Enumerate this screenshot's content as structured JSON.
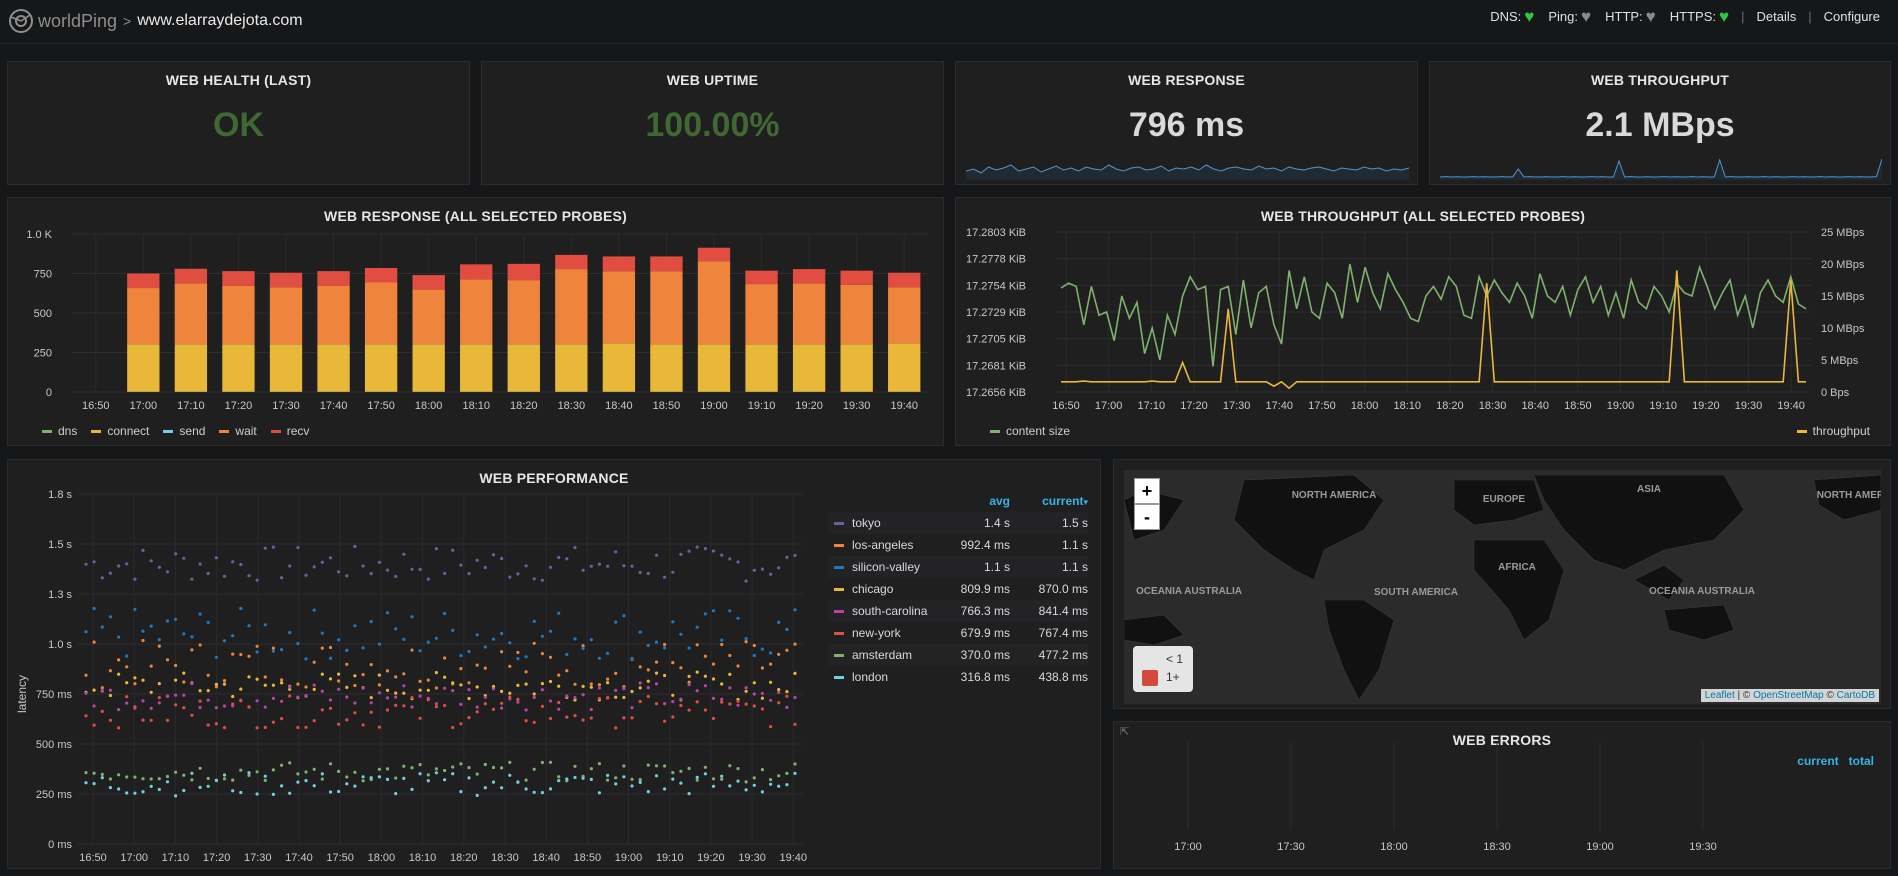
{
  "header": {
    "brand": "worldPing",
    "separator": ">",
    "site": "www.elarraydejota.com",
    "checks": [
      {
        "label": "DNS:",
        "state": "ok",
        "color": "#2ec642",
        "icon": "heart-icon"
      },
      {
        "label": "Ping:",
        "state": "unknown",
        "color": "#8a8a8a",
        "icon": "heart-icon"
      },
      {
        "label": "HTTP:",
        "state": "unknown",
        "color": "#8a8a8a",
        "icon": "heart-icon"
      },
      {
        "label": "HTTPS:",
        "state": "ok",
        "color": "#2ec642",
        "icon": "heart-icon"
      }
    ],
    "details_link": "Details",
    "configure_link": "Configure",
    "divider": "|"
  },
  "stats": [
    {
      "title": "WEB HEALTH (LAST)",
      "value": "OK",
      "color": "#3f6833"
    },
    {
      "title": "WEB UPTIME",
      "value": "100.00%",
      "color": "#3f6833"
    },
    {
      "title": "WEB RESPONSE",
      "value": "796 ms",
      "color": "#d8d9da",
      "spark": [
        0.4,
        0.5,
        0.3,
        0.6,
        0.45,
        0.55,
        0.7,
        0.4,
        0.5,
        0.6,
        0.35,
        0.5,
        0.65,
        0.45,
        0.55,
        0.4,
        0.6,
        0.5,
        0.45,
        0.7,
        0.5,
        0.4,
        0.55,
        0.6,
        0.45,
        0.5,
        0.65,
        0.4,
        0.55,
        0.5,
        0.6,
        0.45,
        0.7,
        0.5,
        0.4,
        0.55,
        0.6,
        0.5,
        0.45,
        0.65,
        0.5,
        0.55,
        0.4,
        0.6,
        0.5,
        0.45,
        0.55,
        0.6,
        0.5,
        0.4,
        0.55,
        0.5,
        0.45,
        0.6,
        0.5,
        0.55,
        0.4,
        0.5,
        0.45,
        0.55
      ]
    },
    {
      "title": "WEB THROUGHPUT",
      "value": "2.1 MBps",
      "color": "#d8d9da",
      "spark": [
        0.1,
        0.12,
        0.1,
        0.11,
        0.1,
        0.1,
        0.12,
        0.1,
        0.11,
        0.1,
        0.1,
        0.12,
        0.1,
        0.11,
        0.5,
        0.1,
        0.12,
        0.1,
        0.1,
        0.11,
        0.1,
        0.1,
        0.12,
        0.1,
        0.11,
        0.1,
        0.1,
        0.12,
        0.1,
        0.11,
        0.1,
        0.1,
        0.9,
        0.1,
        0.12,
        0.1,
        0.1,
        0.11,
        0.1,
        0.1,
        0.12,
        0.1,
        0.11,
        0.1,
        0.1,
        0.12,
        0.1,
        0.11,
        0.1,
        0.1,
        0.95,
        0.1,
        0.12,
        0.1,
        0.1,
        0.11,
        0.1,
        0.1,
        0.12,
        0.1,
        0.11,
        0.1,
        0.1,
        0.12,
        0.1,
        0.11,
        0.1,
        0.1,
        0.12,
        0.1,
        0.11,
        0.1,
        0.1,
        0.12,
        0.1,
        0.11,
        0.1,
        0.1,
        0.12,
        1.0
      ]
    }
  ],
  "response_panel": {
    "title": "WEB RESPONSE (ALL SELECTED PROBES)",
    "legend": [
      {
        "name": "dns",
        "color": "#7eb26d"
      },
      {
        "name": "connect",
        "color": "#eab839"
      },
      {
        "name": "send",
        "color": "#6ed0e0"
      },
      {
        "name": "wait",
        "color": "#ef843c"
      },
      {
        "name": "recv",
        "color": "#e24d42"
      }
    ]
  },
  "throughput_panel": {
    "title": "WEB THROUGHPUT (ALL SELECTED PROBES)",
    "legend_left": {
      "name": "content size",
      "color": "#7eb26d"
    },
    "legend_right": {
      "name": "throughput",
      "color": "#eab839"
    }
  },
  "performance_panel": {
    "title": "WEB PERFORMANCE",
    "ylabel": "latency",
    "col_avg": "avg",
    "col_current": "current",
    "sort_icon": "caret-down-icon",
    "probes": [
      {
        "name": "tokyo",
        "avg": "1.4 s",
        "current": "1.5 s",
        "color": "#705da0"
      },
      {
        "name": "los-angeles",
        "avg": "992.4 ms",
        "current": "1.1 s",
        "color": "#ef843c"
      },
      {
        "name": "silicon-valley",
        "avg": "1.1 s",
        "current": "1.1 s",
        "color": "#1f78c1"
      },
      {
        "name": "chicago",
        "avg": "809.9 ms",
        "current": "870.0 ms",
        "color": "#eab839"
      },
      {
        "name": "south-carolina",
        "avg": "766.3 ms",
        "current": "841.4 ms",
        "color": "#ba43a9"
      },
      {
        "name": "new-york",
        "avg": "679.9 ms",
        "current": "767.4 ms",
        "color": "#e24d42"
      },
      {
        "name": "amsterdam",
        "avg": "370.0 ms",
        "current": "477.2 ms",
        "color": "#7eb26d"
      },
      {
        "name": "london",
        "avg": "316.8 ms",
        "current": "438.8 ms",
        "color": "#6ed0e0"
      }
    ]
  },
  "map_panel": {
    "zoom_in": "+",
    "zoom_out": "-",
    "legend_lt1": "< 1",
    "legend_1plus": "1+",
    "legend_color": "#d44a3a",
    "attrib_leaflet": "Leaflet",
    "attrib_sep1": " | © ",
    "attrib_osm": "OpenStreetMap",
    "attrib_sep2": " © ",
    "attrib_carto": "CartoDB",
    "labels": [
      "NORTH AMERICA",
      "EUROPE",
      "ASIA",
      "NORTH AMERICA",
      "AFRICA",
      "SOUTH AMERICA",
      "OCEANIA AUSTRALIA",
      "OCEANIA AUSTRALIA"
    ]
  },
  "errors_panel": {
    "title": "WEB ERRORS",
    "col_current": "current",
    "col_total": "total",
    "link_icon": "external-link-icon",
    "xticks": [
      "17:00",
      "17:30",
      "18:00",
      "18:30",
      "19:00",
      "19:30"
    ]
  },
  "chart_data": [
    {
      "type": "bar",
      "title": "WEB RESPONSE (ALL SELECTED PROBES)",
      "stacked": true,
      "xticks": [
        "16:50",
        "17:00",
        "17:10",
        "17:20",
        "17:30",
        "17:40",
        "17:50",
        "18:00",
        "18:10",
        "18:20",
        "18:30",
        "18:40",
        "18:50",
        "19:00",
        "19:10",
        "19:20",
        "19:30",
        "19:40"
      ],
      "yticks": [
        "0",
        "250",
        "500",
        "750",
        "1.0 K"
      ],
      "ylim": [
        0,
        1000
      ],
      "categories": [
        "17:00",
        "17:10",
        "17:20",
        "17:30",
        "17:40",
        "17:50",
        "18:00",
        "18:10",
        "18:20",
        "18:30",
        "18:40",
        "18:50",
        "19:00",
        "19:10",
        "19:20",
        "19:30",
        "19:40"
      ],
      "series": [
        {
          "name": "dns",
          "values": [
            2,
            2,
            2,
            2,
            2,
            2,
            2,
            2,
            2,
            2,
            2,
            2,
            2,
            2,
            2,
            2,
            2
          ]
        },
        {
          "name": "connect",
          "values": [
            300,
            300,
            300,
            300,
            300,
            300,
            300,
            300,
            300,
            300,
            305,
            300,
            300,
            300,
            300,
            300,
            305
          ]
        },
        {
          "name": "send",
          "values": [
            1,
            1,
            1,
            1,
            1,
            1,
            1,
            1,
            1,
            1,
            1,
            1,
            1,
            1,
            1,
            1,
            1
          ]
        },
        {
          "name": "wait",
          "values": [
            355,
            385,
            370,
            360,
            370,
            390,
            345,
            410,
            405,
            475,
            455,
            460,
            525,
            380,
            385,
            375,
            355
          ]
        },
        {
          "name": "recv",
          "values": [
            92,
            92,
            92,
            92,
            92,
            92,
            92,
            95,
            103,
            90,
            95,
            95,
            85,
            85,
            90,
            90,
            92
          ]
        }
      ]
    },
    {
      "type": "line",
      "title": "WEB THROUGHPUT (ALL SELECTED PROBES)",
      "xticks": [
        "16:50",
        "17:00",
        "17:10",
        "17:20",
        "17:30",
        "17:40",
        "17:50",
        "18:00",
        "18:10",
        "18:20",
        "18:30",
        "18:40",
        "18:50",
        "19:00",
        "19:10",
        "19:20",
        "19:30",
        "19:40"
      ],
      "yticks_left": [
        "17.2656 KiB",
        "17.2681 KiB",
        "17.2705 KiB",
        "17.2729 KiB",
        "17.2754 KiB",
        "17.2778 KiB",
        "17.2803 KiB"
      ],
      "yticks_right": [
        "0 Bps",
        "5 MBps",
        "10 MBps",
        "15 MBps",
        "20 MBps",
        "25 MBps"
      ],
      "ylim_right": [
        0,
        25
      ],
      "series": [
        {
          "name": "content size",
          "axis": "left",
          "values": [
            0.65,
            0.68,
            0.66,
            0.42,
            0.66,
            0.48,
            0.5,
            0.32,
            0.6,
            0.46,
            0.56,
            0.24,
            0.4,
            0.2,
            0.48,
            0.36,
            0.6,
            0.72,
            0.64,
            0.66,
            0.16,
            0.64,
            0.66,
            0.36,
            0.7,
            0.4,
            0.62,
            0.66,
            0.42,
            0.3,
            0.76,
            0.52,
            0.72,
            0.5,
            0.46,
            0.68,
            0.62,
            0.46,
            0.8,
            0.56,
            0.78,
            0.62,
            0.52,
            0.74,
            0.64,
            0.56,
            0.46,
            0.44,
            0.6,
            0.66,
            0.58,
            0.72,
            0.66,
            0.48,
            0.46,
            0.72,
            0.6,
            0.7,
            0.62,
            0.56,
            0.68,
            0.6,
            0.46,
            0.74,
            0.6,
            0.56,
            0.66,
            0.48,
            0.64,
            0.72,
            0.56,
            0.66,
            0.48,
            0.62,
            0.46,
            0.7,
            0.56,
            0.52,
            0.66,
            0.6,
            0.5,
            0.68,
            0.62,
            0.6,
            0.78,
            0.66,
            0.52,
            0.62,
            0.7,
            0.48,
            0.6,
            0.4,
            0.62,
            0.7,
            0.6,
            0.56,
            0.72,
            0.55,
            0.52
          ]
        },
        {
          "name": "throughput",
          "axis": "right",
          "values": [
            1.6,
            1.6,
            1.6,
            1.7,
            1.6,
            1.6,
            1.6,
            1.6,
            1.6,
            1.6,
            1.6,
            1.6,
            1.7,
            1.6,
            1.6,
            1.6,
            4.6,
            1.6,
            1.6,
            1.6,
            1.6,
            1.6,
            13.0,
            1.6,
            1.6,
            1.6,
            1.6,
            1.6,
            0.9,
            1.6,
            0.6,
            1.6,
            1.6,
            1.6,
            1.6,
            1.6,
            1.6,
            1.6,
            1.6,
            1.6,
            1.6,
            1.6,
            1.6,
            1.6,
            1.6,
            1.6,
            1.6,
            1.6,
            1.6,
            1.6,
            1.6,
            1.6,
            1.6,
            1.6,
            1.6,
            1.6,
            17.0,
            1.6,
            1.6,
            1.6,
            1.6,
            1.6,
            1.6,
            1.6,
            1.6,
            1.6,
            1.6,
            1.6,
            1.6,
            1.6,
            1.6,
            1.6,
            1.6,
            1.6,
            1.6,
            1.6,
            1.6,
            1.6,
            1.6,
            1.6,
            1.6,
            19.0,
            1.6,
            1.6,
            1.6,
            1.6,
            1.6,
            1.6,
            1.6,
            1.6,
            1.6,
            1.6,
            1.6,
            1.6,
            1.6,
            1.6,
            17.5,
            1.6,
            1.6
          ]
        }
      ]
    },
    {
      "type": "scatter",
      "title": "WEB PERFORMANCE",
      "ylabel": "latency",
      "yticks": [
        "0 ms",
        "250 ms",
        "500 ms",
        "750 ms",
        "1.0 s",
        "1.3 s",
        "1.5 s",
        "1.8 s"
      ],
      "ylim": [
        0,
        1750
      ],
      "xticks": [
        "16:50",
        "17:00",
        "17:10",
        "17:20",
        "17:30",
        "17:40",
        "17:50",
        "18:00",
        "18:10",
        "18:20",
        "18:30",
        "18:40",
        "18:50",
        "19:00",
        "19:10",
        "19:20",
        "19:30",
        "19:40"
      ],
      "series": [
        {
          "name": "tokyo",
          "center": 1400,
          "spread": 90
        },
        {
          "name": "los-angeles",
          "center": 900,
          "spread": 120
        },
        {
          "name": "silicon-valley",
          "center": 1050,
          "spread": 130
        },
        {
          "name": "chicago",
          "center": 790,
          "spread": 70
        },
        {
          "name": "south-carolina",
          "center": 740,
          "spread": 70
        },
        {
          "name": "new-york",
          "center": 660,
          "spread": 80
        },
        {
          "name": "amsterdam",
          "center": 360,
          "spread": 50
        },
        {
          "name": "london",
          "center": 300,
          "spread": 60
        }
      ]
    }
  ]
}
